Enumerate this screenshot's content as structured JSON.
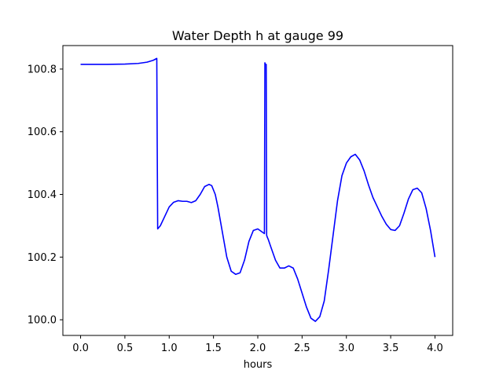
{
  "chart_data": {
    "type": "line",
    "title": "Water Depth h at gauge 99",
    "xlabel": "hours",
    "ylabel": "",
    "xlim": [
      -0.2,
      4.2
    ],
    "ylim": [
      99.95,
      100.875
    ],
    "xticks": [
      0.0,
      0.5,
      1.0,
      1.5,
      2.0,
      2.5,
      3.0,
      3.5,
      4.0
    ],
    "xtick_labels": [
      "0.0",
      "0.5",
      "1.0",
      "1.5",
      "2.0",
      "2.5",
      "3.0",
      "3.5",
      "4.0"
    ],
    "yticks": [
      100.0,
      100.2,
      100.4,
      100.6,
      100.8
    ],
    "ytick_labels": [
      "100.0",
      "100.2",
      "100.4",
      "100.6",
      "100.8"
    ],
    "grid": false,
    "legend": "none",
    "series": [
      {
        "color": "#0000ff",
        "x": [
          0.0,
          0.3,
          0.5,
          0.65,
          0.75,
          0.82,
          0.86,
          0.865,
          0.87,
          0.9,
          0.95,
          1.0,
          1.05,
          1.1,
          1.15,
          1.2,
          1.25,
          1.3,
          1.35,
          1.4,
          1.45,
          1.48,
          1.52,
          1.55,
          1.6,
          1.65,
          1.7,
          1.75,
          1.8,
          1.85,
          1.9,
          1.95,
          2.0,
          2.05,
          2.075,
          2.08,
          2.085,
          2.095,
          2.1,
          2.105,
          2.12,
          2.15,
          2.2,
          2.25,
          2.3,
          2.35,
          2.4,
          2.45,
          2.5,
          2.55,
          2.6,
          2.65,
          2.7,
          2.75,
          2.8,
          2.85,
          2.9,
          2.95,
          3.0,
          3.05,
          3.1,
          3.15,
          3.2,
          3.25,
          3.3,
          3.35,
          3.4,
          3.45,
          3.5,
          3.55,
          3.6,
          3.65,
          3.7,
          3.75,
          3.8,
          3.85,
          3.9,
          3.95,
          4.0
        ],
        "y": [
          100.815,
          100.815,
          100.816,
          100.818,
          100.822,
          100.828,
          100.834,
          100.55,
          100.29,
          100.3,
          100.33,
          100.36,
          100.375,
          100.38,
          100.378,
          100.378,
          100.374,
          100.38,
          100.4,
          100.425,
          100.432,
          100.428,
          100.4,
          100.36,
          100.28,
          100.2,
          100.155,
          100.145,
          100.15,
          100.19,
          100.25,
          100.285,
          100.29,
          100.28,
          100.275,
          100.82,
          100.815,
          100.815,
          100.27,
          100.265,
          100.255,
          100.23,
          100.19,
          100.165,
          100.165,
          100.172,
          100.165,
          100.13,
          100.085,
          100.04,
          100.005,
          99.995,
          100.01,
          100.06,
          100.16,
          100.27,
          100.38,
          100.46,
          100.5,
          100.52,
          100.528,
          100.51,
          100.475,
          100.43,
          100.39,
          100.36,
          100.33,
          100.305,
          100.288,
          100.285,
          100.3,
          100.34,
          100.385,
          100.415,
          100.42,
          100.405,
          100.355,
          100.285,
          100.2
        ]
      }
    ]
  }
}
